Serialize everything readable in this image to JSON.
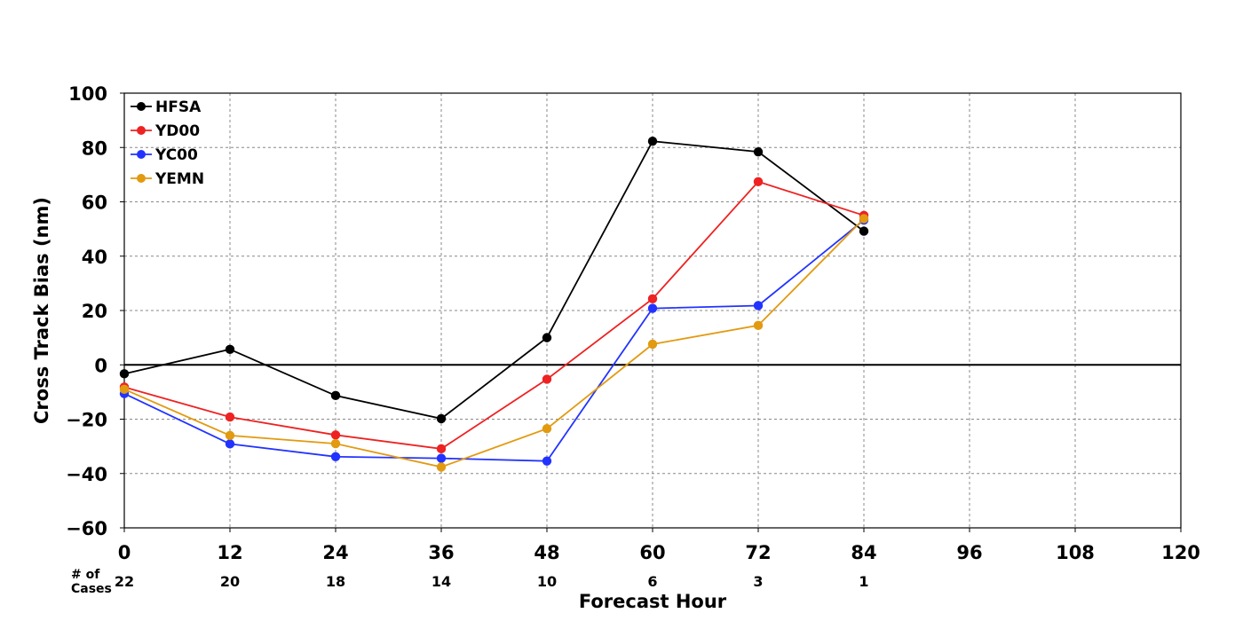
{
  "chart_data": {
    "type": "line",
    "title": "",
    "xlabel": "Forecast Hour",
    "ylabel": "Cross Track Bias (nm)",
    "xlim": [
      0,
      120
    ],
    "ylim": [
      -60,
      100
    ],
    "xticks": [
      0,
      12,
      24,
      36,
      48,
      60,
      72,
      84,
      96,
      108,
      120
    ],
    "yticks": [
      -60,
      -40,
      -20,
      0,
      20,
      40,
      60,
      80,
      100
    ],
    "grid": true,
    "zero_line": true,
    "legend_position": "top-left",
    "cases_label_line1": "# of",
    "cases_label_line2": "Cases",
    "cases": [
      {
        "x": 0,
        "n": "22"
      },
      {
        "x": 12,
        "n": "20"
      },
      {
        "x": 24,
        "n": "18"
      },
      {
        "x": 36,
        "n": "14"
      },
      {
        "x": 48,
        "n": "10"
      },
      {
        "x": 60,
        "n": "6"
      },
      {
        "x": 72,
        "n": "3"
      },
      {
        "x": 84,
        "n": "1"
      }
    ],
    "x": [
      0,
      12,
      24,
      36,
      48,
      60,
      72,
      84
    ],
    "series": [
      {
        "name": "HFSA",
        "color": "#000000",
        "values": [
          -3.3,
          5.7,
          -11.3,
          -19.8,
          10.0,
          82.3,
          78.4,
          49.2
        ]
      },
      {
        "name": "YD00",
        "color": "#ee2222",
        "values": [
          -8.2,
          -19.2,
          -25.8,
          -30.9,
          -5.3,
          24.3,
          67.4,
          55.0
        ]
      },
      {
        "name": "YC00",
        "color": "#2233ff",
        "values": [
          -10.6,
          -29.1,
          -33.8,
          -34.4,
          -35.4,
          20.8,
          21.8,
          53.3
        ]
      },
      {
        "name": "YEMN",
        "color": "#e29a10",
        "values": [
          -9.0,
          -26.0,
          -29.0,
          -37.6,
          -23.5,
          7.6,
          14.5,
          53.8
        ]
      }
    ]
  }
}
